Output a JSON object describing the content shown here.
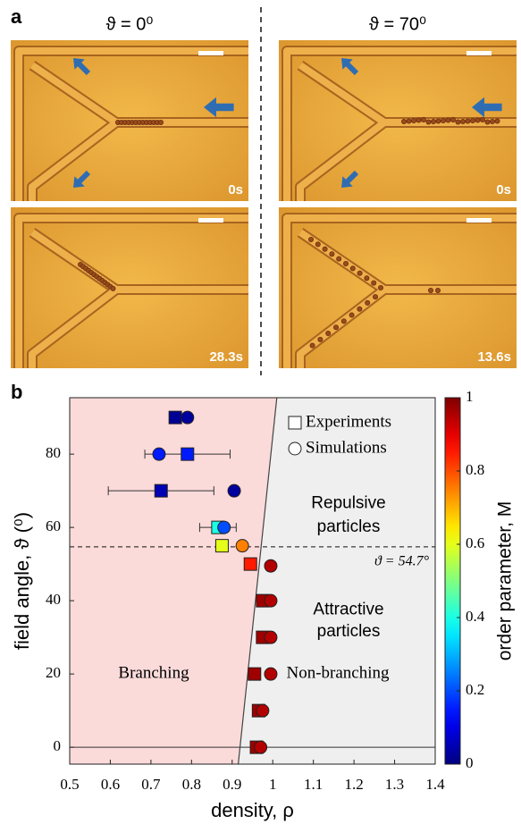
{
  "panel_a": {
    "label": "a",
    "titles": [
      "ϑ = 0⁰",
      "ϑ = 70⁰"
    ],
    "time_labels": [
      "0s",
      "0s",
      "28.3s",
      "13.6s"
    ]
  },
  "chart_data": {
    "type": "scatter",
    "panel_label": "b",
    "xlabel": "density, ρ",
    "ylabel": "field angle, ϑ (⁰)",
    "xlim": [
      0.5,
      1.4
    ],
    "xticks": [
      0.5,
      0.6,
      0.7,
      0.8,
      0.9,
      1,
      1.1,
      1.2,
      1.3,
      1.4
    ],
    "ylim": [
      -4.6,
      95.4
    ],
    "yticks": [
      0,
      20,
      40,
      60,
      80
    ],
    "colormap": "jet",
    "colorbar": {
      "label": "order parameter, M",
      "lim": [
        0,
        1
      ],
      "ticks": [
        0,
        0.2,
        0.4,
        0.6,
        0.8,
        1
      ]
    },
    "legend": "upper right",
    "series": [
      {
        "name": "Experiments",
        "marker": "square",
        "x": [
          0.76,
          0.79,
          0.725,
          0.865,
          0.875,
          0.945,
          0.975,
          0.975,
          0.955,
          0.965,
          0.96
        ],
        "values": [
          90,
          80,
          70,
          60,
          55,
          50,
          40,
          30,
          20,
          10,
          0
        ],
        "M": [
          0.02,
          0.15,
          0.05,
          0.4,
          0.6,
          0.85,
          0.97,
          0.97,
          0.97,
          0.97,
          0.97
        ],
        "xerr": [
          null,
          0.105,
          0.13,
          0.045,
          null,
          null,
          null,
          null,
          null,
          null,
          null
        ]
      },
      {
        "name": "Simulations",
        "marker": "circle",
        "x": [
          0.79,
          0.72,
          0.905,
          0.88,
          0.925,
          0.995,
          0.995,
          0.995,
          0.995,
          0.975,
          0.97
        ],
        "values": [
          90,
          80,
          70,
          60,
          55,
          49.5,
          40,
          30,
          20,
          10,
          0
        ],
        "M": [
          0.03,
          0.15,
          0.03,
          0.2,
          0.75,
          0.95,
          0.95,
          0.95,
          0.95,
          0.95,
          0.95
        ]
      }
    ],
    "boundary": {
      "x": [
        0.915,
        1.01
      ],
      "y": [
        -4.6,
        95.4
      ]
    },
    "region_colors": [
      "#fbdada",
      "#efefef"
    ],
    "region_labels": [
      "Branching",
      "Non-branching"
    ],
    "reference_line": {
      "value": 54.7,
      "label": "ϑ = 54.7°"
    },
    "baseline": 0,
    "annotations": [
      [
        "Repulsive",
        "particles"
      ],
      [
        "Attractive",
        "particles"
      ]
    ]
  }
}
